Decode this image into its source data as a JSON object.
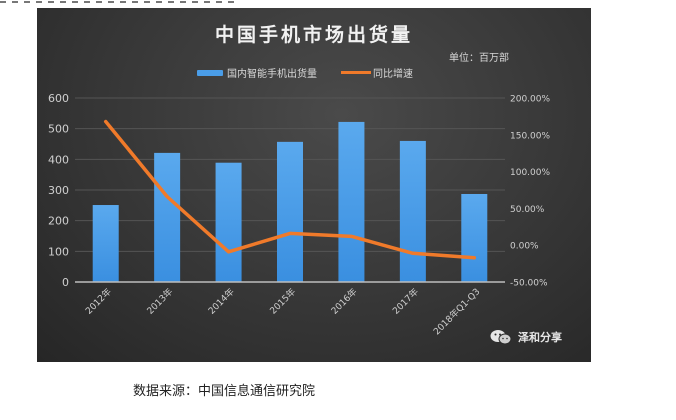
{
  "page": {
    "source_note": "数据来源：中国信息通信研究院"
  },
  "chart": {
    "title": "中国手机市场出货量",
    "unit": "单位：百万部",
    "legend": [
      {
        "label": "国内智能手机出货量",
        "type": "bar",
        "color": "#4a9de8"
      },
      {
        "label": "同比增速",
        "type": "line",
        "color": "#f07a2a"
      }
    ],
    "watermark": "泽和分享",
    "watermark_icon": "wechat-icon"
  },
  "chart_data": {
    "type": "bar",
    "title": "中国手机市场出货量",
    "subtitle": "单位：百万部",
    "categories": [
      "2012年",
      "2013年",
      "2014年",
      "2015年",
      "2016年",
      "2017年",
      "2018年Q1-Q3"
    ],
    "series": [
      {
        "name": "国内智能手机出货量",
        "type": "bar",
        "axis": "left",
        "color": "#4a9de8",
        "values": [
          251,
          421,
          389,
          457,
          522,
          460,
          287
        ]
      },
      {
        "name": "同比增速",
        "type": "line",
        "axis": "right",
        "color": "#f07a2a",
        "values": [
          168,
          66,
          -9,
          16,
          12,
          -11,
          -17
        ],
        "unit": "%"
      }
    ],
    "left_axis": {
      "ticks": [
        "0",
        "100",
        "200",
        "300",
        "400",
        "500",
        "600"
      ],
      "ylim": [
        0,
        600
      ]
    },
    "right_axis": {
      "ticks": [
        "-50.00%",
        "0.00%",
        "50.00%",
        "100.00%",
        "150.00%",
        "200.00%"
      ],
      "ylim": [
        -50,
        200
      ]
    },
    "xlabel": "",
    "ylabel": "",
    "grid": true,
    "legend_position": "top",
    "background": "#333333"
  }
}
